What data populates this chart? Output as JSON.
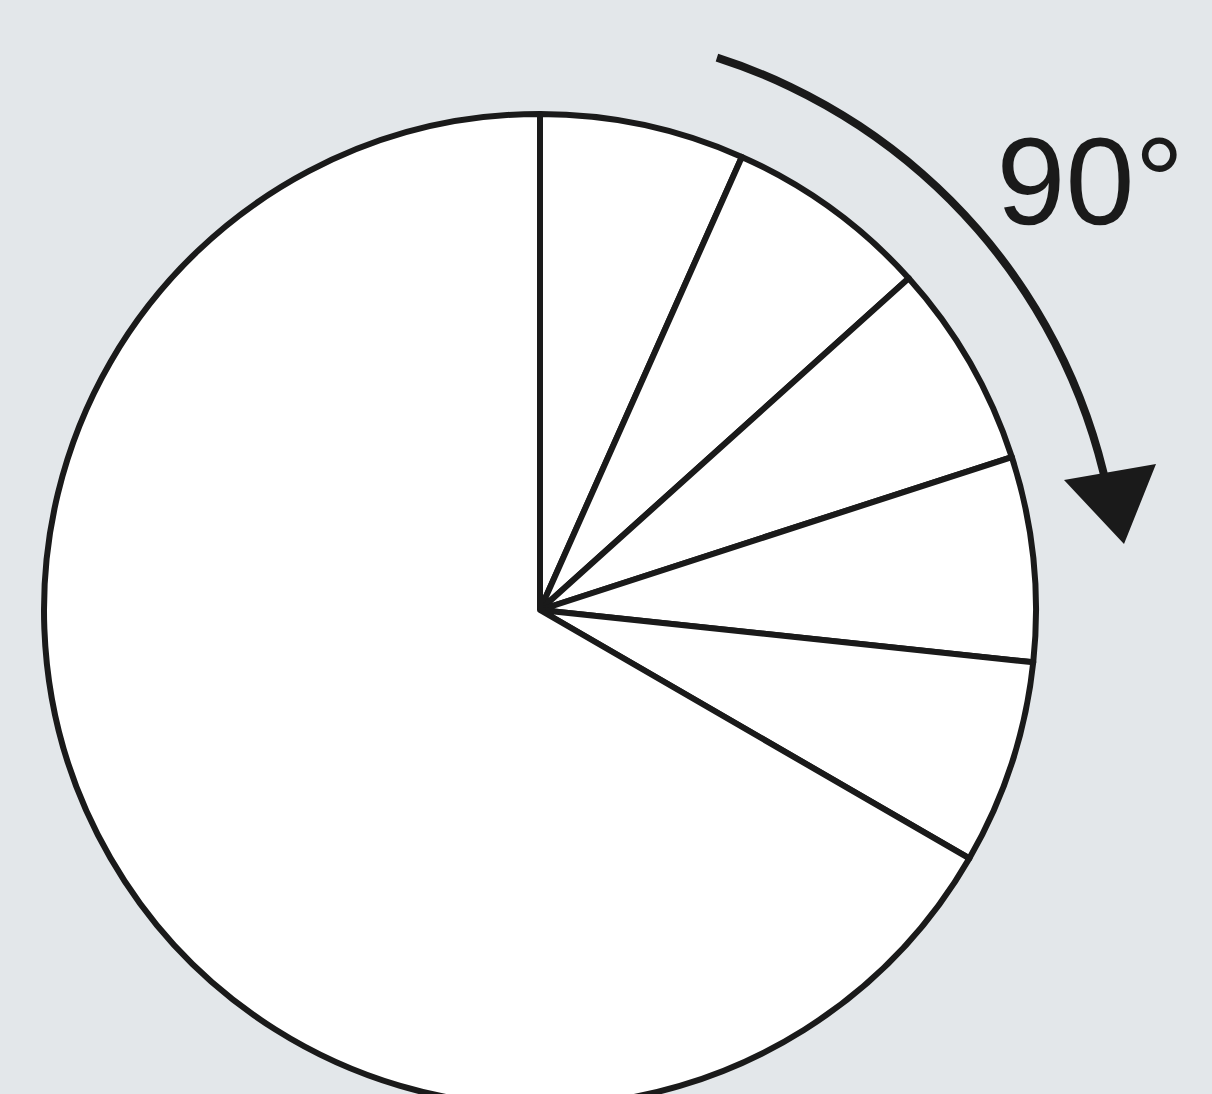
{
  "chart_data": {
    "type": "pie",
    "categories": [
      null,
      null,
      null,
      null,
      null,
      null
    ],
    "values": [
      6.67,
      6.67,
      6.67,
      6.67,
      6.67,
      66.65
    ],
    "colors": [
      "#ffffff",
      "#ffffff",
      "#ffffff",
      "#ffffff",
      "#ffffff",
      "#ffffff"
    ],
    "annotations": [
      "90°"
    ]
  }
}
